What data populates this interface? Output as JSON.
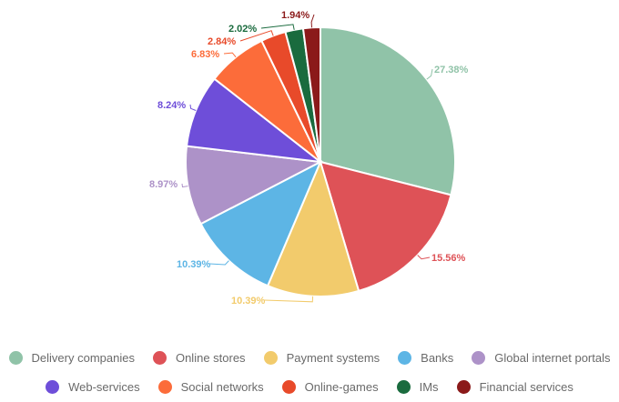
{
  "chart_data": {
    "type": "pie",
    "categories": [
      "Delivery companies",
      "Online stores",
      "Payment systems",
      "Banks",
      "Global internet portals",
      "Web-services",
      "Social networks",
      "Online-games",
      "IMs",
      "Financial services"
    ],
    "values": [
      27.38,
      15.56,
      10.39,
      10.39,
      8.97,
      8.24,
      6.83,
      2.84,
      2.02,
      1.94
    ],
    "labels": [
      "27.38%",
      "15.56%",
      "10.39%",
      "10.39%",
      "8.97%",
      "8.24%",
      "6.83%",
      "2.84%",
      "2.02%",
      "1.94%"
    ],
    "colors": [
      "#90c3a8",
      "#de5257",
      "#f2cb6c",
      "#5db5e5",
      "#ad92c8",
      "#6e4ed9",
      "#fc6c3a",
      "#e84a2a",
      "#1a6b3e",
      "#8b1a1a"
    ],
    "legend_placement": "bottom"
  }
}
